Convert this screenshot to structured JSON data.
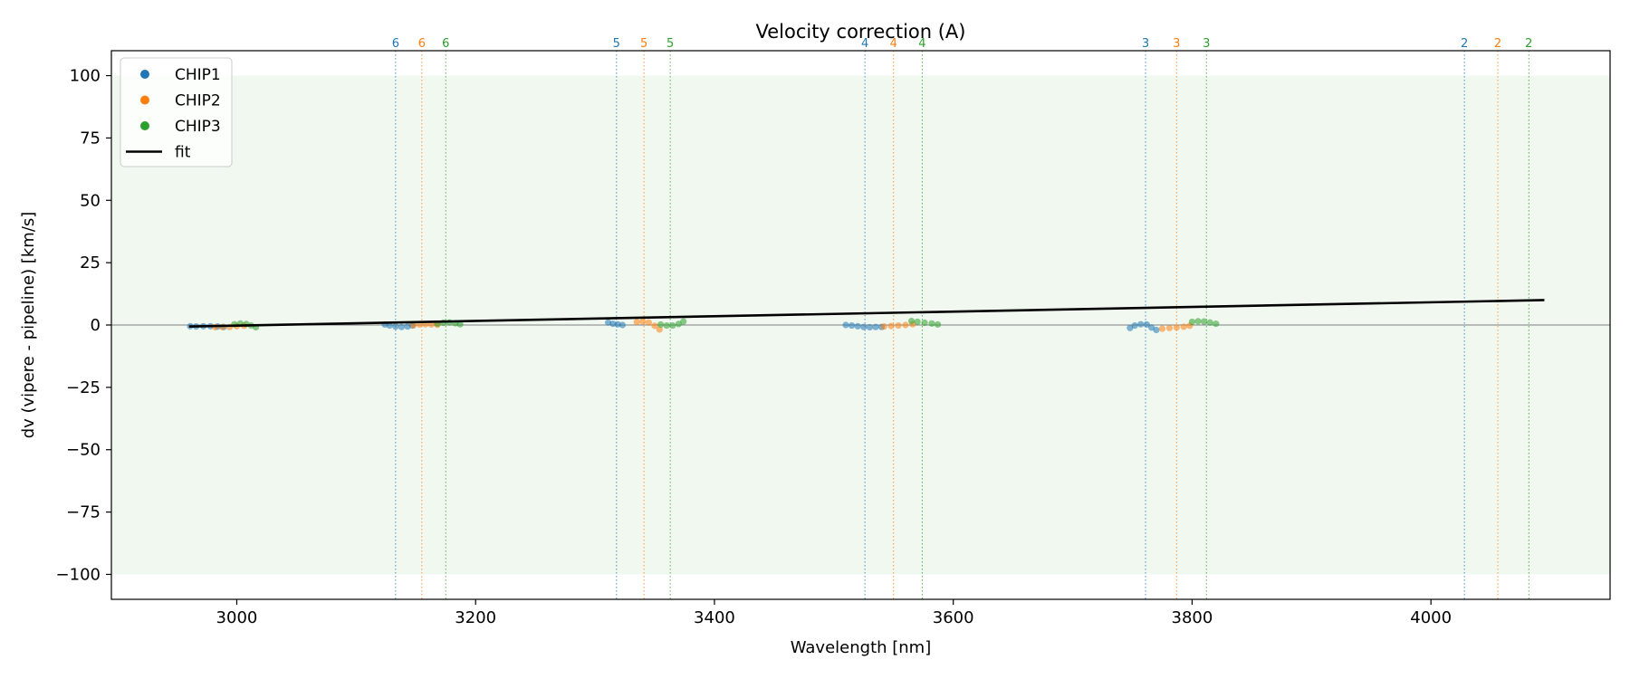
{
  "chart_data": {
    "type": "scatter",
    "title": "Velocity correction (A)",
    "xlabel": "Wavelength [nm]",
    "ylabel": "dv (vipere - pipeline) [km/s]",
    "xlim": [
      2895,
      4150
    ],
    "ylim": [
      -110,
      110
    ],
    "xticks": [
      3000,
      3200,
      3400,
      3600,
      3800,
      4000
    ],
    "yticks": [
      100,
      75,
      50,
      25,
      0,
      -25,
      -50,
      -75,
      -100
    ],
    "xtick_labels": [
      "3000",
      "3200",
      "3400",
      "3600",
      "3800",
      "4000"
    ],
    "ytick_labels": [
      "100",
      "75",
      "50",
      "25",
      "0",
      "−25",
      "−50",
      "−75",
      "−100"
    ],
    "band": [
      -100,
      100
    ],
    "band_color": "#2ca02c",
    "zero_line": 0,
    "legend_position": "top-left",
    "grid": false,
    "colors": {
      "CHIP1": "#1f77b4",
      "CHIP2": "#ff7f0e",
      "CHIP3": "#2ca02c",
      "fit": "#000000"
    },
    "legend": [
      {
        "label": "CHIP1",
        "kind": "marker",
        "color": "#1f77b4"
      },
      {
        "label": "CHIP2",
        "kind": "marker",
        "color": "#ff7f0e"
      },
      {
        "label": "CHIP3",
        "kind": "marker",
        "color": "#2ca02c"
      },
      {
        "label": "fit",
        "kind": "line",
        "color": "#000000"
      }
    ],
    "series": [
      {
        "name": "CHIP1",
        "color": "#1f77b4",
        "segments": [
          {
            "x": [
              2961,
              2966,
              2972,
              2978,
              2984,
              2989
            ],
            "y": [
              -0.5,
              -0.6,
              -0.5,
              -0.5,
              -0.6,
              -0.8
            ]
          },
          {
            "x": [
              3124,
              3128,
              3133,
              3138,
              3143,
              3147
            ],
            "y": [
              0.2,
              -0.2,
              -0.6,
              -0.8,
              -0.6,
              -0.2
            ]
          },
          {
            "x": [
              3311,
              3315,
              3319,
              3323
            ],
            "y": [
              1.0,
              0.5,
              0.3,
              0.0
            ]
          },
          {
            "x": [
              3510,
              3515,
              3520,
              3525,
              3530,
              3535,
              3540
            ],
            "y": [
              0.0,
              -0.2,
              -0.5,
              -0.8,
              -0.9,
              -0.8,
              -0.8
            ]
          },
          {
            "x": [
              3748,
              3752,
              3757,
              3762,
              3766,
              3770
            ],
            "y": [
              -1.2,
              -0.2,
              0.3,
              0.2,
              -1.0,
              -2.0
            ]
          }
        ]
      },
      {
        "name": "CHIP2",
        "color": "#ff7f0e",
        "segments": [
          {
            "x": [
              2982,
              2988,
              2994,
              3000,
              3006
            ],
            "y": [
              -0.9,
              -0.8,
              -0.8,
              -0.5,
              -0.3
            ]
          },
          {
            "x": [
              3148,
              3153,
              3158,
              3163,
              3168
            ],
            "y": [
              -0.1,
              0.2,
              0.3,
              0.2,
              0.1
            ]
          },
          {
            "x": [
              3335,
              3340,
              3345,
              3350,
              3354
            ],
            "y": [
              1.2,
              1.4,
              1.0,
              -0.3,
              -1.8
            ]
          },
          {
            "x": [
              3542,
              3548,
              3554,
              3560,
              3566
            ],
            "y": [
              -0.6,
              -0.4,
              -0.2,
              0.0,
              0.3
            ]
          },
          {
            "x": [
              3775,
              3781,
              3787,
              3793,
              3798
            ],
            "y": [
              -1.5,
              -1.2,
              -1.0,
              -0.7,
              -0.3
            ]
          }
        ]
      },
      {
        "name": "CHIP3",
        "color": "#2ca02c",
        "segments": [
          {
            "x": [
              2998,
              3003,
              3008,
              3012,
              3016
            ],
            "y": [
              0.3,
              0.6,
              0.4,
              -0.2,
              -0.9
            ]
          },
          {
            "x": [
              3168,
              3173,
              3178,
              3183,
              3187
            ],
            "y": [
              0.5,
              0.9,
              1.0,
              0.7,
              0.3
            ]
          },
          {
            "x": [
              3355,
              3360,
              3365,
              3370,
              3374
            ],
            "y": [
              0.2,
              -0.2,
              -0.2,
              0.4,
              1.4
            ]
          },
          {
            "x": [
              3565,
              3570,
              3576,
              3582,
              3587
            ],
            "y": [
              1.6,
              1.3,
              0.9,
              0.6,
              0.2
            ]
          },
          {
            "x": [
              3800,
              3805,
              3810,
              3815,
              3820
            ],
            "y": [
              1.3,
              1.5,
              1.4,
              1.0,
              0.5
            ]
          }
        ]
      }
    ],
    "fit": {
      "name": "fit",
      "x": [
        2960,
        4095
      ],
      "y": [
        -0.6,
        10.0
      ]
    },
    "order_markers": [
      {
        "x": 3133,
        "label": "6",
        "color": "#1f77b4"
      },
      {
        "x": 3155,
        "label": "6",
        "color": "#ff7f0e"
      },
      {
        "x": 3175,
        "label": "6",
        "color": "#2ca02c"
      },
      {
        "x": 3318,
        "label": "5",
        "color": "#1f77b4"
      },
      {
        "x": 3341,
        "label": "5",
        "color": "#ff7f0e"
      },
      {
        "x": 3363,
        "label": "5",
        "color": "#2ca02c"
      },
      {
        "x": 3526,
        "label": "4",
        "color": "#1f77b4"
      },
      {
        "x": 3550,
        "label": "4",
        "color": "#ff7f0e"
      },
      {
        "x": 3574,
        "label": "4",
        "color": "#2ca02c"
      },
      {
        "x": 3761,
        "label": "3",
        "color": "#1f77b4"
      },
      {
        "x": 3787,
        "label": "3",
        "color": "#ff7f0e"
      },
      {
        "x": 3812,
        "label": "3",
        "color": "#2ca02c"
      },
      {
        "x": 4028,
        "label": "2",
        "color": "#1f77b4"
      },
      {
        "x": 4056,
        "label": "2",
        "color": "#ff7f0e"
      },
      {
        "x": 4082,
        "label": "2",
        "color": "#2ca02c"
      }
    ]
  }
}
